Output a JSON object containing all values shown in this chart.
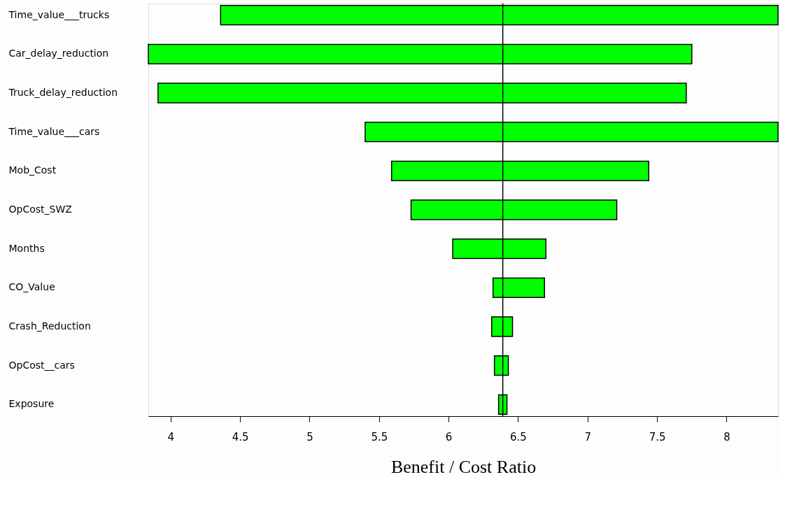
{
  "chart_data": {
    "type": "bar",
    "orientation": "horizontal",
    "xlabel": "Benefit / Cost Ratio",
    "categories": [
      "Time_value___trucks",
      "Car_delay_reduction",
      "Truck_delay_reduction",
      "Time_value___cars",
      "Mob_Cost",
      "OpCost_SWZ",
      "Months",
      "CO_Value",
      "Crash_Reduction",
      "OpCost__cars",
      "Exposure"
    ],
    "base": [
      4.36,
      3.84,
      3.91,
      5.4,
      5.59,
      5.73,
      6.03,
      6.32,
      6.31,
      6.33,
      6.36
    ],
    "values": [
      4.01,
      3.91,
      3.8,
      2.97,
      1.85,
      1.48,
      0.67,
      0.37,
      0.15,
      0.1,
      0.06
    ],
    "color": "#00ff00",
    "xlim": [
      3.84,
      8.37
    ],
    "xticks": [
      4,
      4.5,
      5,
      5.5,
      6,
      6.5,
      7,
      7.5,
      8
    ],
    "ref_lines": [
      {
        "axis": "x",
        "value": 6.39,
        "color": "#000000"
      }
    ],
    "grid": false
  }
}
